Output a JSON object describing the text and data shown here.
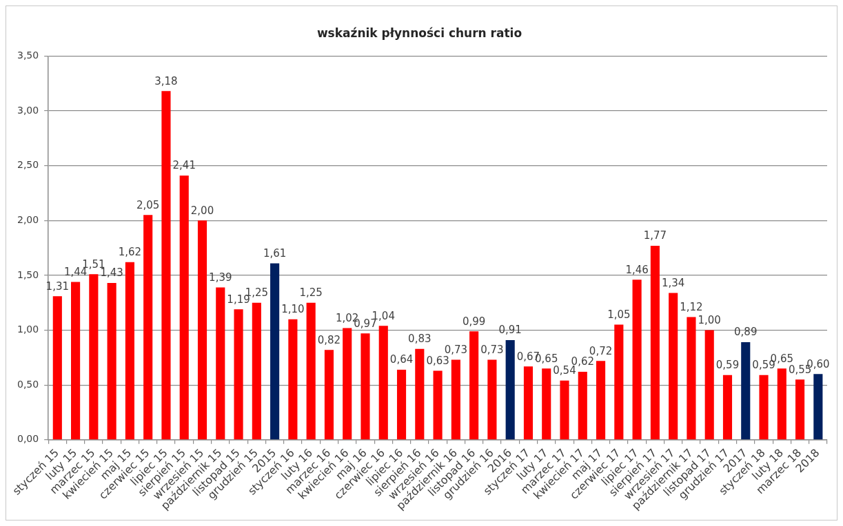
{
  "chart_data": {
    "type": "bar",
    "title": "wskaźnik płynności churn ratio",
    "categories": [
      "styczeń 15",
      "luty 15",
      "marzec 15",
      "kwiecień 15",
      "maj 15",
      "czerwiec 15",
      "lipiec 15",
      "sierpień 15",
      "wrzesień 15",
      "październik 15",
      "listopad 15",
      "grudzień 15",
      "2015",
      "styczeń 16",
      "luty 16",
      "marzec 16",
      "kwiecień 16",
      "maj 16",
      "czerwiec 16",
      "lipiec 16",
      "sierpień 16",
      "wrzesień 16",
      "październik 16",
      "listopad 16",
      "grudzień 16",
      "2016",
      "styczeń 17",
      "luty 17",
      "marzec 17",
      "kwiecień 17",
      "maj 17",
      "czerwiec 17",
      "lipiec 17",
      "sierpień 17",
      "wrzesień 17",
      "październik 17",
      "listopad 17",
      "grudzień 17",
      "2017",
      "styczeń 18",
      "luty 18",
      "marzec 18",
      "2018"
    ],
    "values": [
      1.31,
      1.44,
      1.51,
      1.43,
      1.62,
      2.05,
      3.18,
      2.41,
      2.0,
      1.39,
      1.19,
      1.25,
      1.61,
      1.1,
      1.25,
      0.82,
      1.02,
      0.97,
      1.04,
      0.64,
      0.83,
      0.63,
      0.73,
      0.99,
      0.73,
      0.91,
      0.67,
      0.65,
      0.54,
      0.62,
      0.72,
      1.05,
      1.46,
      1.77,
      1.34,
      1.12,
      1.0,
      0.59,
      0.89,
      0.59,
      0.65,
      0.55,
      0.6
    ],
    "value_labels": [
      "1,31",
      "1,44",
      "1,51",
      "1,43",
      "1,62",
      "2,05",
      "3,18",
      "2,41",
      "2,00",
      "1,39",
      "1,19",
      "1,25",
      "1,61",
      "1,10",
      "1,25",
      "0,82",
      "1,02",
      "0,97",
      "1,04",
      "0,64",
      "0,83",
      "0,63",
      "0,73",
      "0,99",
      "0,73",
      "0,91",
      "0,67",
      "0,65",
      "0,54",
      "0,62",
      "0,72",
      "1,05",
      "1,46",
      "1,77",
      "1,34",
      "1,12",
      "1,00",
      "0,59",
      "0,89",
      "0,59",
      "0,65",
      "0,55",
      "0,60"
    ],
    "colors": [
      "#ff0000",
      "#ff0000",
      "#ff0000",
      "#ff0000",
      "#ff0000",
      "#ff0000",
      "#ff0000",
      "#ff0000",
      "#ff0000",
      "#ff0000",
      "#ff0000",
      "#ff0000",
      "#002060",
      "#ff0000",
      "#ff0000",
      "#ff0000",
      "#ff0000",
      "#ff0000",
      "#ff0000",
      "#ff0000",
      "#ff0000",
      "#ff0000",
      "#ff0000",
      "#ff0000",
      "#ff0000",
      "#002060",
      "#ff0000",
      "#ff0000",
      "#ff0000",
      "#ff0000",
      "#ff0000",
      "#ff0000",
      "#ff0000",
      "#ff0000",
      "#ff0000",
      "#ff0000",
      "#ff0000",
      "#ff0000",
      "#002060",
      "#ff0000",
      "#ff0000",
      "#ff0000",
      "#002060"
    ],
    "ylim": [
      0,
      3.5
    ],
    "yticks": [
      {
        "value": 0,
        "label": "0,00"
      },
      {
        "value": 0.5,
        "label": "0,50"
      },
      {
        "value": 1,
        "label": "1,00"
      },
      {
        "value": 1.5,
        "label": "1,50"
      },
      {
        "value": 2,
        "label": "2,00"
      },
      {
        "value": 2.5,
        "label": "2,50"
      },
      {
        "value": 3,
        "label": "3,00"
      },
      {
        "value": 3.5,
        "label": "3,50"
      }
    ],
    "grid": "y"
  }
}
